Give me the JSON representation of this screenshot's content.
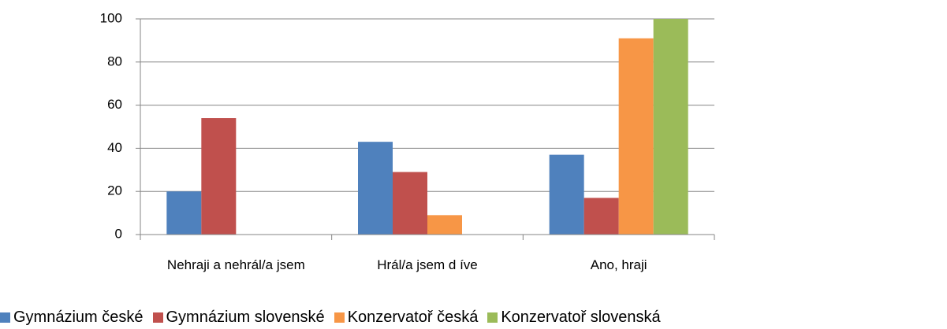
{
  "chart_data": {
    "type": "bar",
    "categories": [
      "Nehraji a nehrál/a jsem",
      "Hrál/a jsem d íve",
      "Ano, hraji"
    ],
    "series": [
      {
        "name": "Gymnázium české",
        "color": "#4f81bd",
        "values": [
          20,
          43,
          37
        ]
      },
      {
        "name": "Gymnázium slovenské",
        "color": "#c0504d",
        "values": [
          54,
          29,
          17
        ]
      },
      {
        "name": "Konzervatoř česká",
        "color": "#f79646",
        "values": [
          0,
          9,
          91
        ]
      },
      {
        "name": "Konzervatoř slovenská",
        "color": "#9bbb59",
        "values": [
          0,
          0,
          100
        ]
      }
    ],
    "ylim": [
      0,
      100
    ],
    "yticks": [
      0,
      20,
      40,
      60,
      80,
      100
    ],
    "grid": true,
    "legend": "bottom"
  }
}
